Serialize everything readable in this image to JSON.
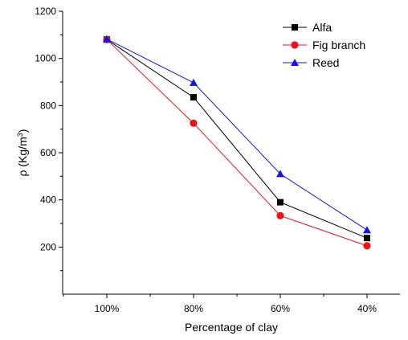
{
  "chart_data": {
    "type": "line",
    "categories": [
      "100%",
      "80%",
      "60%",
      "40%"
    ],
    "xlabel": "Percentage of clay",
    "ylabel_main": "ρ (Kg/m",
    "ylabel_sup": "3",
    "ylabel_close": ")",
    "ylim": [
      0,
      1200
    ],
    "yticks": [
      200,
      400,
      600,
      800,
      1000,
      1200
    ],
    "ytick_labels": [
      "200",
      "400",
      "600",
      "800",
      "1000",
      "1200"
    ],
    "grid": false,
    "legend_position": "top-right",
    "series": [
      {
        "name": "Alfa",
        "values": [
          1080,
          835,
          390,
          238
        ],
        "color": "#000000",
        "marker": "square"
      },
      {
        "name": "Fig branch",
        "values": [
          1080,
          725,
          333,
          205
        ],
        "color": "#e8141b",
        "marker": "circle"
      },
      {
        "name": "Reed",
        "values": [
          1082,
          897,
          510,
          272
        ],
        "color": "#1515e0",
        "marker": "triangle"
      }
    ]
  }
}
